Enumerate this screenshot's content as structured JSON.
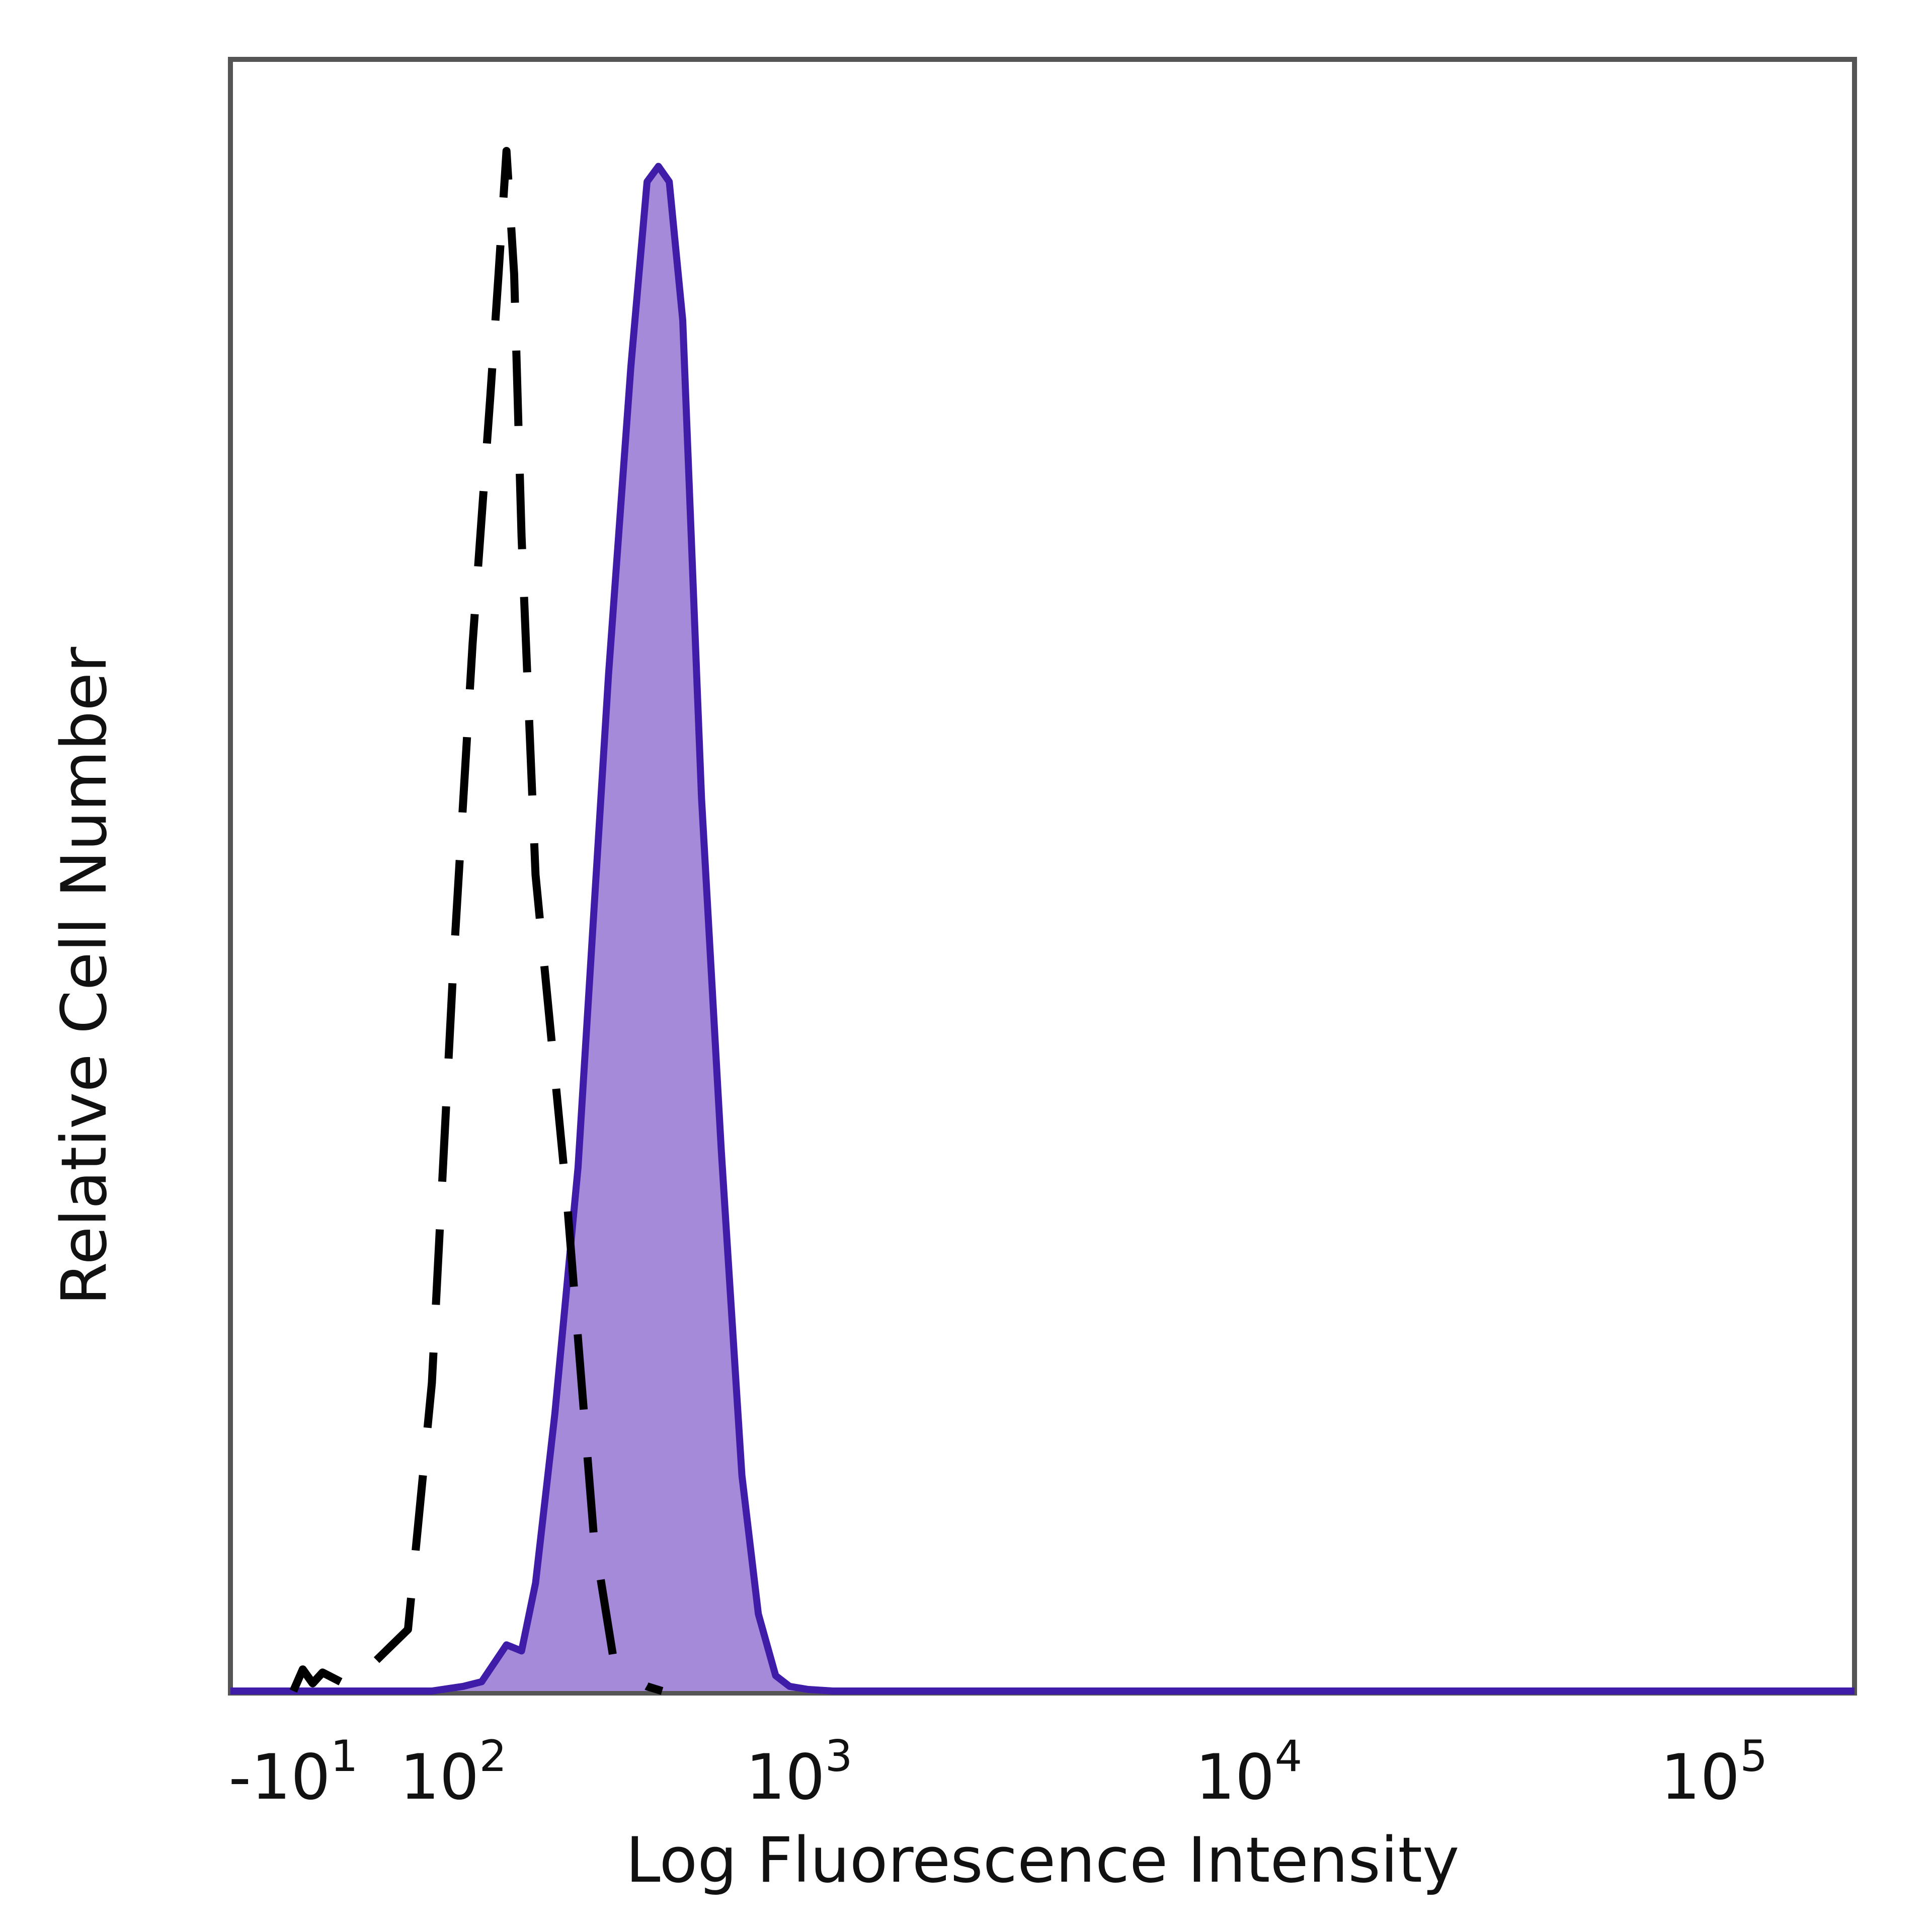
{
  "chart_data": {
    "type": "area",
    "title": "",
    "xlabel": "Log Fluorescence Intensity",
    "ylabel": "Relative Cell Number",
    "x_scale": "biexponential",
    "x_ticks": [
      {
        "value": -10,
        "base": "-10",
        "exp": "1"
      },
      {
        "value": 100,
        "base": "10",
        "exp": "2"
      },
      {
        "value": 1000,
        "base": "10",
        "exp": "3"
      },
      {
        "value": 10000,
        "base": "10",
        "exp": "4"
      },
      {
        "value": 100000,
        "base": "10",
        "exp": "5"
      }
    ],
    "xlim": [
      -50,
      200000
    ],
    "ylim": [
      0,
      100
    ],
    "grid": false,
    "series": [
      {
        "style": "dashed",
        "color": "#000000",
        "x": [
          -10,
          -5,
          0,
          5,
          20,
          60,
          80,
          100,
          120,
          140,
          150,
          160,
          170,
          180,
          200,
          250,
          300,
          340,
          380,
          420,
          460
        ],
        "y": [
          0,
          1.4,
          0.5,
          1.2,
          0.3,
          4,
          20,
          47,
          68,
          84,
          92,
          100,
          92,
          75,
          53,
          32,
          10,
          2.2,
          0.9,
          0.3,
          0
        ]
      },
      {
        "style": "filled",
        "color": "#3f1da8",
        "fill": "#a48ad8",
        "x": [
          -50,
          80,
          110,
          130,
          160,
          180,
          200,
          230,
          270,
          330,
          380,
          420,
          450,
          480,
          520,
          580,
          650,
          730,
          800,
          880,
          950,
          1050,
          1200,
          200000
        ],
        "y": [
          0,
          0,
          0.3,
          0.6,
          3,
          2.6,
          7,
          18,
          34,
          66,
          86,
          98,
          99,
          98,
          89,
          58,
          35,
          14,
          5,
          1,
          0.3,
          0.1,
          0,
          0
        ]
      }
    ]
  }
}
